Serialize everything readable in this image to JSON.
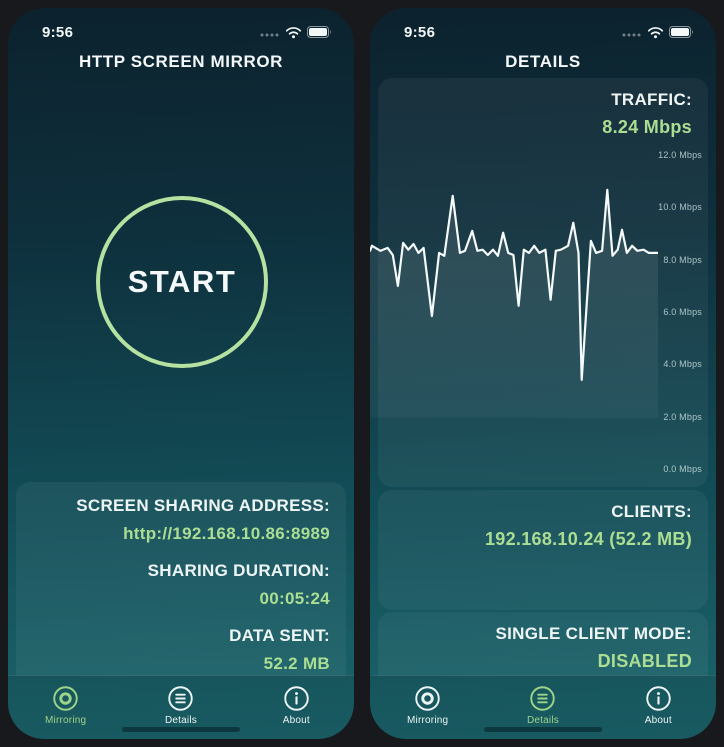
{
  "colors": {
    "accent_green": "#abde92",
    "text_white": "#eef5f5",
    "phone_bg_top": "#0c222e",
    "phone_bg_bottom": "#1c666d"
  },
  "status_bar": {
    "time": "9:56"
  },
  "left_phone": {
    "title": "HTTP SCREEN MIRROR",
    "start_button_label": "START",
    "info_rows": [
      {
        "label": "SCREEN SHARING ADDRESS:",
        "value": "http://192.168.10.86:8989"
      },
      {
        "label": "SHARING DURATION:",
        "value": "00:05:24"
      },
      {
        "label": "DATA SENT:",
        "value": "52.2 MB"
      }
    ],
    "tabs": [
      {
        "label": "Mirroring",
        "icon": "record-circle-icon",
        "active": true
      },
      {
        "label": "Details",
        "icon": "list-circle-icon",
        "active": false
      },
      {
        "label": "About",
        "icon": "info-circle-icon",
        "active": false
      }
    ]
  },
  "right_phone": {
    "title": "DETAILS",
    "traffic_label": "TRAFFIC:",
    "traffic_value": "8.24 Mbps",
    "clients_label": "CLIENTS:",
    "clients_value": "192.168.10.24 (52.2 MB)",
    "single_client_label": "SINGLE CLIENT MODE:",
    "single_client_value": "DISABLED",
    "tabs": [
      {
        "label": "Mirroring",
        "icon": "record-circle-icon",
        "active": false
      },
      {
        "label": "Details",
        "icon": "list-circle-icon",
        "active": true
      },
      {
        "label": "About",
        "icon": "info-circle-icon",
        "active": false
      }
    ]
  },
  "chart_data": {
    "type": "line",
    "title": "Network traffic",
    "ylabel": "Mbps",
    "current_value_mbps": 8.24,
    "ylim": [
      0,
      12.6
    ],
    "grid": false,
    "legend": "none",
    "line_color": "#f5fafa",
    "fill_to_value": 2.0,
    "yticks": [
      {
        "value": 12,
        "label": "12.0 Mbps"
      },
      {
        "value": 10,
        "label": "10.0 Mbps"
      },
      {
        "value": 8,
        "label": "8.0 Mbps"
      },
      {
        "value": 6,
        "label": "6.0 Mbps"
      },
      {
        "value": 4,
        "label": "4.0 Mbps"
      },
      {
        "value": 2,
        "label": "2.0 Mbps"
      },
      {
        "value": 0,
        "label": "0.0 Mbps"
      }
    ],
    "points": [
      [
        0.0,
        8.37
      ],
      [
        0.007,
        8.56
      ],
      [
        0.036,
        8.37
      ],
      [
        0.061,
        8.48
      ],
      [
        0.079,
        8.21
      ],
      [
        0.097,
        7.03
      ],
      [
        0.115,
        8.67
      ],
      [
        0.133,
        8.41
      ],
      [
        0.151,
        8.63
      ],
      [
        0.168,
        8.29
      ],
      [
        0.186,
        8.48
      ],
      [
        0.215,
        5.88
      ],
      [
        0.24,
        8.29
      ],
      [
        0.258,
        8.18
      ],
      [
        0.287,
        10.47
      ],
      [
        0.312,
        8.29
      ],
      [
        0.33,
        8.37
      ],
      [
        0.355,
        9.13
      ],
      [
        0.373,
        8.37
      ],
      [
        0.391,
        8.41
      ],
      [
        0.409,
        8.21
      ],
      [
        0.427,
        8.41
      ],
      [
        0.444,
        8.18
      ],
      [
        0.462,
        9.06
      ],
      [
        0.48,
        8.29
      ],
      [
        0.498,
        8.21
      ],
      [
        0.516,
        6.27
      ],
      [
        0.534,
        8.41
      ],
      [
        0.552,
        8.29
      ],
      [
        0.57,
        8.56
      ],
      [
        0.588,
        8.29
      ],
      [
        0.609,
        8.41
      ],
      [
        0.627,
        6.5
      ],
      [
        0.645,
        8.37
      ],
      [
        0.663,
        8.41
      ],
      [
        0.688,
        8.56
      ],
      [
        0.706,
        9.44
      ],
      [
        0.724,
        8.29
      ],
      [
        0.735,
        3.44
      ],
      [
        0.767,
        8.75
      ],
      [
        0.785,
        8.29
      ],
      [
        0.806,
        8.37
      ],
      [
        0.824,
        10.7
      ],
      [
        0.842,
        8.18
      ],
      [
        0.86,
        8.41
      ],
      [
        0.875,
        9.17
      ],
      [
        0.892,
        8.29
      ],
      [
        0.91,
        8.56
      ],
      [
        0.928,
        8.37
      ],
      [
        0.95,
        8.41
      ],
      [
        0.968,
        8.29
      ],
      [
        1.0,
        8.29
      ]
    ]
  }
}
